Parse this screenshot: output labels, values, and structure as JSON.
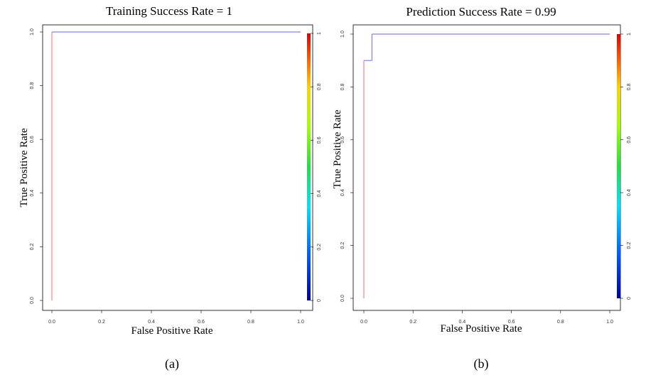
{
  "chart_data": [
    {
      "type": "line",
      "title": "Training Success Rate = 1",
      "xlabel": "False Positive Rate",
      "ylabel": "True Positive Rate",
      "caption": "(a)",
      "xlim": [
        0,
        1
      ],
      "ylim": [
        0,
        1
      ],
      "xticks": [
        "0.0",
        "0.2",
        "0.4",
        "0.6",
        "0.8",
        "1.0"
      ],
      "yticks": [
        "0.0",
        "0.2",
        "0.4",
        "0.6",
        "0.8",
        "1.0"
      ],
      "colorbar": {
        "ticks": [
          "0",
          "0.2",
          "0.4",
          "0.6",
          "0.8",
          "1"
        ]
      },
      "series": [
        {
          "x": [
            0,
            0,
            1
          ],
          "y": [
            0,
            1,
            1
          ],
          "colors": [
            "#ff8080",
            "#8080ff"
          ]
        }
      ]
    },
    {
      "type": "line",
      "title": "Prediction Success Rate = 0.99",
      "xlabel": "False Positive Rate",
      "ylabel": "True Positive Rate",
      "caption": "(b)",
      "xlim": [
        0,
        1
      ],
      "ylim": [
        0,
        1
      ],
      "xticks": [
        "0.0",
        "0.2",
        "0.4",
        "0.6",
        "0.8",
        "1.0"
      ],
      "yticks": [
        "0.0",
        "0.2",
        "0.4",
        "0.6",
        "0.8",
        "1.0"
      ],
      "colorbar": {
        "ticks": [
          "0",
          "0.2",
          "0.4",
          "0.6",
          "0.8",
          "1"
        ]
      },
      "series": [
        {
          "x": [
            0,
            0,
            0.033,
            0.033,
            1
          ],
          "y": [
            0,
            0.9,
            0.9,
            1,
            1
          ],
          "colors": [
            "#ff8080",
            "#8080ff",
            "#8080ff",
            "#8080ff"
          ]
        }
      ]
    }
  ]
}
